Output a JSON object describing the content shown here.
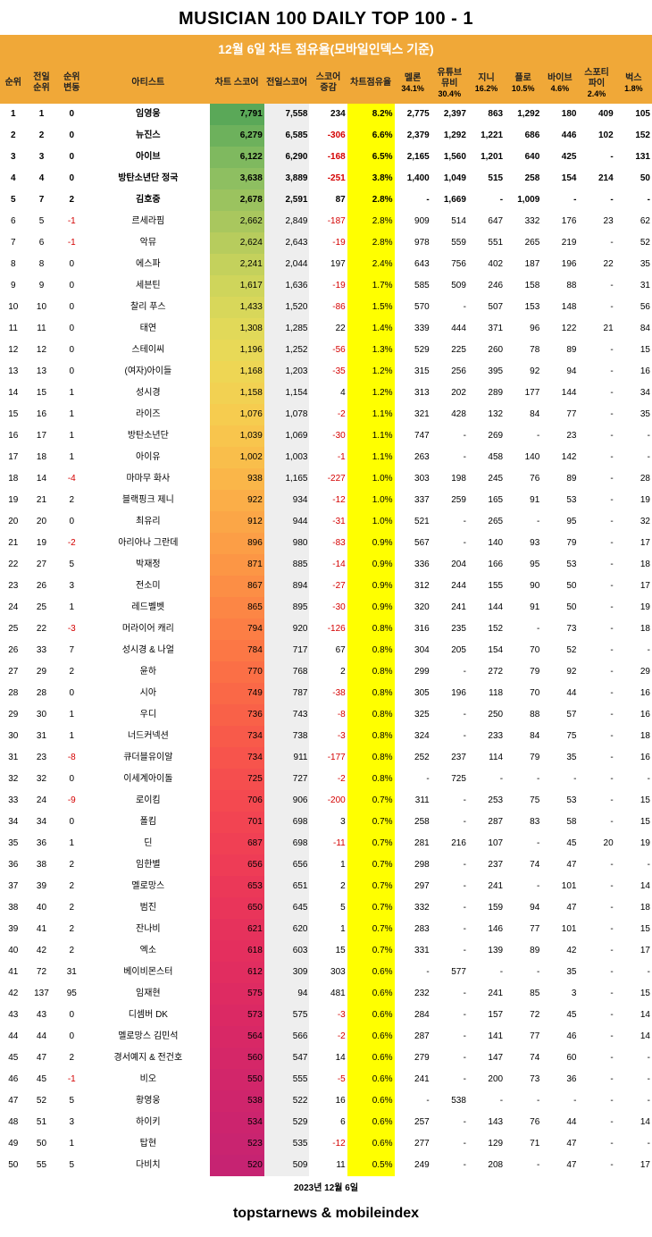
{
  "title": "MUSICIAN 100 DAILY TOP 100 - 1",
  "subtitle": "12월 6일  차트 점유율(모바일인덱스 기준)",
  "date": "2023년 12월 6일",
  "footer": "topstarnews & mobileindex",
  "headers": {
    "rank": "순위",
    "prev": "전일\n순위",
    "chg": "순위\n변동",
    "artist": "아티스트",
    "score": "차트 스코어",
    "pscore": "전일스코어",
    "diff": "스코어\n증감",
    "share": "차트점유율",
    "sources": [
      {
        "name": "멜론",
        "pct": "34.1%"
      },
      {
        "name": "유튜브\n뮤비",
        "pct": "30.4%"
      },
      {
        "name": "지니",
        "pct": "16.2%"
      },
      {
        "name": "플로",
        "pct": "10.5%"
      },
      {
        "name": "바이브",
        "pct": "4.6%"
      },
      {
        "name": "스포티\n파이",
        "pct": "2.4%"
      },
      {
        "name": "벅스",
        "pct": "1.8%"
      }
    ]
  },
  "boldRows": 5,
  "scoreGradient": [
    "#5aa858",
    "#6db15c",
    "#7fb95f",
    "#8ebf61",
    "#9bc35f",
    "#a9c75e",
    "#b7cc5d",
    "#c4d15c",
    "#cfd55b",
    "#d8d75a",
    "#e1d959",
    "#e8d957",
    "#eed654",
    "#f2d152",
    "#f6cc4f",
    "#f8c54d",
    "#f9be4b",
    "#fab649",
    "#fbae48",
    "#fba647",
    "#fc9e46",
    "#fc9645",
    "#fc8e45",
    "#fc8645",
    "#fc7e45",
    "#fc7745",
    "#fb6f46",
    "#fa6847",
    "#f96148",
    "#f85a4a",
    "#f7544c",
    "#f54e4e",
    "#f44950",
    "#f24452",
    "#f04054",
    "#ee3c56",
    "#eb3858",
    "#e9355a",
    "#e6325c",
    "#e42f5e",
    "#e12d60",
    "#de2b62",
    "#db2964",
    "#d82866",
    "#d52768",
    "#d2266a",
    "#cf256c",
    "#cc246e",
    "#c92470",
    "#c62372"
  ],
  "rows": [
    {
      "rank": 1,
      "prev": 1,
      "chg": 0,
      "artist": "임영웅",
      "score": "7,791",
      "pscore": "7,558",
      "diff": 234,
      "share": "8.2%",
      "src": [
        "2,775",
        "2,397",
        "863",
        "1,292",
        "180",
        "409",
        "105"
      ]
    },
    {
      "rank": 2,
      "prev": 2,
      "chg": 0,
      "artist": "뉴진스",
      "score": "6,279",
      "pscore": "6,585",
      "diff": -306,
      "share": "6.6%",
      "src": [
        "2,379",
        "1,292",
        "1,221",
        "686",
        "446",
        "102",
        "152"
      ]
    },
    {
      "rank": 3,
      "prev": 3,
      "chg": 0,
      "artist": "아이브",
      "score": "6,122",
      "pscore": "6,290",
      "diff": -168,
      "share": "6.5%",
      "src": [
        "2,165",
        "1,560",
        "1,201",
        "640",
        "425",
        "-",
        "131"
      ]
    },
    {
      "rank": 4,
      "prev": 4,
      "chg": 0,
      "artist": "방탄소년단 정국",
      "score": "3,638",
      "pscore": "3,889",
      "diff": -251,
      "share": "3.8%",
      "src": [
        "1,400",
        "1,049",
        "515",
        "258",
        "154",
        "214",
        "50"
      ]
    },
    {
      "rank": 5,
      "prev": 7,
      "chg": 2,
      "artist": "김호중",
      "score": "2,678",
      "pscore": "2,591",
      "diff": 87,
      "share": "2.8%",
      "src": [
        "-",
        "1,669",
        "-",
        "1,009",
        "-",
        "-",
        "-"
      ]
    },
    {
      "rank": 6,
      "prev": 5,
      "chg": -1,
      "artist": "르세라핌",
      "score": "2,662",
      "pscore": "2,849",
      "diff": -187,
      "share": "2.8%",
      "src": [
        "909",
        "514",
        "647",
        "332",
        "176",
        "23",
        "62"
      ]
    },
    {
      "rank": 7,
      "prev": 6,
      "chg": -1,
      "artist": "악뮤",
      "score": "2,624",
      "pscore": "2,643",
      "diff": -19,
      "share": "2.8%",
      "src": [
        "978",
        "559",
        "551",
        "265",
        "219",
        "-",
        "52"
      ]
    },
    {
      "rank": 8,
      "prev": 8,
      "chg": 0,
      "artist": "에스파",
      "score": "2,241",
      "pscore": "2,044",
      "diff": 197,
      "share": "2.4%",
      "src": [
        "643",
        "756",
        "402",
        "187",
        "196",
        "22",
        "35"
      ]
    },
    {
      "rank": 9,
      "prev": 9,
      "chg": 0,
      "artist": "세븐틴",
      "score": "1,617",
      "pscore": "1,636",
      "diff": -19,
      "share": "1.7%",
      "src": [
        "585",
        "509",
        "246",
        "158",
        "88",
        "-",
        "31"
      ]
    },
    {
      "rank": 10,
      "prev": 10,
      "chg": 0,
      "artist": "찰리 푸스",
      "score": "1,433",
      "pscore": "1,520",
      "diff": -86,
      "share": "1.5%",
      "src": [
        "570",
        "-",
        "507",
        "153",
        "148",
        "-",
        "56"
      ]
    },
    {
      "rank": 11,
      "prev": 11,
      "chg": 0,
      "artist": "태연",
      "score": "1,308",
      "pscore": "1,285",
      "diff": 22,
      "share": "1.4%",
      "src": [
        "339",
        "444",
        "371",
        "96",
        "122",
        "21",
        "84"
      ]
    },
    {
      "rank": 12,
      "prev": 12,
      "chg": 0,
      "artist": "스테이씨",
      "score": "1,196",
      "pscore": "1,252",
      "diff": -56,
      "share": "1.3%",
      "src": [
        "529",
        "225",
        "260",
        "78",
        "89",
        "-",
        "15"
      ]
    },
    {
      "rank": 13,
      "prev": 13,
      "chg": 0,
      "artist": "(여자)아이들",
      "score": "1,168",
      "pscore": "1,203",
      "diff": -35,
      "share": "1.2%",
      "src": [
        "315",
        "256",
        "395",
        "92",
        "94",
        "-",
        "16"
      ]
    },
    {
      "rank": 14,
      "prev": 15,
      "chg": 1,
      "artist": "성시경",
      "score": "1,158",
      "pscore": "1,154",
      "diff": 4,
      "share": "1.2%",
      "src": [
        "313",
        "202",
        "289",
        "177",
        "144",
        "-",
        "34"
      ]
    },
    {
      "rank": 15,
      "prev": 16,
      "chg": 1,
      "artist": "라이즈",
      "score": "1,076",
      "pscore": "1,078",
      "diff": -2,
      "share": "1.1%",
      "src": [
        "321",
        "428",
        "132",
        "84",
        "77",
        "-",
        "35"
      ]
    },
    {
      "rank": 16,
      "prev": 17,
      "chg": 1,
      "artist": "방탄소년단",
      "score": "1,039",
      "pscore": "1,069",
      "diff": -30,
      "share": "1.1%",
      "src": [
        "747",
        "-",
        "269",
        "-",
        "23",
        "-",
        "-"
      ]
    },
    {
      "rank": 17,
      "prev": 18,
      "chg": 1,
      "artist": "아이유",
      "score": "1,002",
      "pscore": "1,003",
      "diff": -1,
      "share": "1.1%",
      "src": [
        "263",
        "-",
        "458",
        "140",
        "142",
        "-",
        "-"
      ]
    },
    {
      "rank": 18,
      "prev": 14,
      "chg": -4,
      "artist": "마마무 화사",
      "score": "938",
      "pscore": "1,165",
      "diff": -227,
      "share": "1.0%",
      "src": [
        "303",
        "198",
        "245",
        "76",
        "89",
        "-",
        "28"
      ]
    },
    {
      "rank": 19,
      "prev": 21,
      "chg": 2,
      "artist": "블랙핑크 제니",
      "score": "922",
      "pscore": "934",
      "diff": -12,
      "share": "1.0%",
      "src": [
        "337",
        "259",
        "165",
        "91",
        "53",
        "-",
        "19"
      ]
    },
    {
      "rank": 20,
      "prev": 20,
      "chg": 0,
      "artist": "최유리",
      "score": "912",
      "pscore": "944",
      "diff": -31,
      "share": "1.0%",
      "src": [
        "521",
        "-",
        "265",
        "-",
        "95",
        "-",
        "32"
      ]
    },
    {
      "rank": 21,
      "prev": 19,
      "chg": -2,
      "artist": "아리아나 그란데",
      "score": "896",
      "pscore": "980",
      "diff": -83,
      "share": "0.9%",
      "src": [
        "567",
        "-",
        "140",
        "93",
        "79",
        "-",
        "17"
      ]
    },
    {
      "rank": 22,
      "prev": 27,
      "chg": 5,
      "artist": "박재정",
      "score": "871",
      "pscore": "885",
      "diff": -14,
      "share": "0.9%",
      "src": [
        "336",
        "204",
        "166",
        "95",
        "53",
        "-",
        "18"
      ]
    },
    {
      "rank": 23,
      "prev": 26,
      "chg": 3,
      "artist": "전소미",
      "score": "867",
      "pscore": "894",
      "diff": -27,
      "share": "0.9%",
      "src": [
        "312",
        "244",
        "155",
        "90",
        "50",
        "-",
        "17"
      ]
    },
    {
      "rank": 24,
      "prev": 25,
      "chg": 1,
      "artist": "레드벨벳",
      "score": "865",
      "pscore": "895",
      "diff": -30,
      "share": "0.9%",
      "src": [
        "320",
        "241",
        "144",
        "91",
        "50",
        "-",
        "19"
      ]
    },
    {
      "rank": 25,
      "prev": 22,
      "chg": -3,
      "artist": "머라이어 캐리",
      "score": "794",
      "pscore": "920",
      "diff": -126,
      "share": "0.8%",
      "src": [
        "316",
        "235",
        "152",
        "-",
        "73",
        "-",
        "18"
      ]
    },
    {
      "rank": 26,
      "prev": 33,
      "chg": 7,
      "artist": "성시경 & 나얼",
      "score": "784",
      "pscore": "717",
      "diff": 67,
      "share": "0.8%",
      "src": [
        "304",
        "205",
        "154",
        "70",
        "52",
        "-",
        "-"
      ]
    },
    {
      "rank": 27,
      "prev": 29,
      "chg": 2,
      "artist": "윤하",
      "score": "770",
      "pscore": "768",
      "diff": 2,
      "share": "0.8%",
      "src": [
        "299",
        "-",
        "272",
        "79",
        "92",
        "-",
        "29"
      ]
    },
    {
      "rank": 28,
      "prev": 28,
      "chg": 0,
      "artist": "시아",
      "score": "749",
      "pscore": "787",
      "diff": -38,
      "share": "0.8%",
      "src": [
        "305",
        "196",
        "118",
        "70",
        "44",
        "-",
        "16"
      ]
    },
    {
      "rank": 29,
      "prev": 30,
      "chg": 1,
      "artist": "우디",
      "score": "736",
      "pscore": "743",
      "diff": -8,
      "share": "0.8%",
      "src": [
        "325",
        "-",
        "250",
        "88",
        "57",
        "-",
        "16"
      ]
    },
    {
      "rank": 30,
      "prev": 31,
      "chg": 1,
      "artist": "너드커넥션",
      "score": "734",
      "pscore": "738",
      "diff": -3,
      "share": "0.8%",
      "src": [
        "324",
        "-",
        "233",
        "84",
        "75",
        "-",
        "18"
      ]
    },
    {
      "rank": 31,
      "prev": 23,
      "chg": -8,
      "artist": "큐더블유이알",
      "score": "734",
      "pscore": "911",
      "diff": -177,
      "share": "0.8%",
      "src": [
        "252",
        "237",
        "114",
        "79",
        "35",
        "-",
        "16"
      ]
    },
    {
      "rank": 32,
      "prev": 32,
      "chg": 0,
      "artist": "이세계아이돌",
      "score": "725",
      "pscore": "727",
      "diff": -2,
      "share": "0.8%",
      "src": [
        "-",
        "725",
        "-",
        "-",
        "-",
        "-",
        "-"
      ]
    },
    {
      "rank": 33,
      "prev": 24,
      "chg": -9,
      "artist": "로이킴",
      "score": "706",
      "pscore": "906",
      "diff": -200,
      "share": "0.7%",
      "src": [
        "311",
        "-",
        "253",
        "75",
        "53",
        "-",
        "15"
      ]
    },
    {
      "rank": 34,
      "prev": 34,
      "chg": 0,
      "artist": "폴킴",
      "score": "701",
      "pscore": "698",
      "diff": 3,
      "share": "0.7%",
      "src": [
        "258",
        "-",
        "287",
        "83",
        "58",
        "-",
        "15"
      ]
    },
    {
      "rank": 35,
      "prev": 36,
      "chg": 1,
      "artist": "딘",
      "score": "687",
      "pscore": "698",
      "diff": -11,
      "share": "0.7%",
      "src": [
        "281",
        "216",
        "107",
        "-",
        "45",
        "20",
        "19"
      ]
    },
    {
      "rank": 36,
      "prev": 38,
      "chg": 2,
      "artist": "임한별",
      "score": "656",
      "pscore": "656",
      "diff": 1,
      "share": "0.7%",
      "src": [
        "298",
        "-",
        "237",
        "74",
        "47",
        "-",
        "-"
      ]
    },
    {
      "rank": 37,
      "prev": 39,
      "chg": 2,
      "artist": "멜로망스",
      "score": "653",
      "pscore": "651",
      "diff": 2,
      "share": "0.7%",
      "src": [
        "297",
        "-",
        "241",
        "-",
        "101",
        "-",
        "14"
      ]
    },
    {
      "rank": 38,
      "prev": 40,
      "chg": 2,
      "artist": "범진",
      "score": "650",
      "pscore": "645",
      "diff": 5,
      "share": "0.7%",
      "src": [
        "332",
        "-",
        "159",
        "94",
        "47",
        "-",
        "18"
      ]
    },
    {
      "rank": 39,
      "prev": 41,
      "chg": 2,
      "artist": "잔나비",
      "score": "621",
      "pscore": "620",
      "diff": 1,
      "share": "0.7%",
      "src": [
        "283",
        "-",
        "146",
        "77",
        "101",
        "-",
        "15"
      ]
    },
    {
      "rank": 40,
      "prev": 42,
      "chg": 2,
      "artist": "엑소",
      "score": "618",
      "pscore": "603",
      "diff": 15,
      "share": "0.7%",
      "src": [
        "331",
        "-",
        "139",
        "89",
        "42",
        "-",
        "17"
      ]
    },
    {
      "rank": 41,
      "prev": 72,
      "chg": 31,
      "artist": "베이비몬스터",
      "score": "612",
      "pscore": "309",
      "diff": 303,
      "share": "0.6%",
      "src": [
        "-",
        "577",
        "-",
        "-",
        "35",
        "-",
        "-"
      ]
    },
    {
      "rank": 42,
      "prev": 137,
      "chg": 95,
      "artist": "임재현",
      "score": "575",
      "pscore": "94",
      "diff": 481,
      "share": "0.6%",
      "src": [
        "232",
        "-",
        "241",
        "85",
        "3",
        "-",
        "15"
      ]
    },
    {
      "rank": 43,
      "prev": 43,
      "chg": 0,
      "artist": "디셈버 DK",
      "score": "573",
      "pscore": "575",
      "diff": -3,
      "share": "0.6%",
      "src": [
        "284",
        "-",
        "157",
        "72",
        "45",
        "-",
        "14"
      ]
    },
    {
      "rank": 44,
      "prev": 44,
      "chg": 0,
      "artist": "멜로망스 김민석",
      "score": "564",
      "pscore": "566",
      "diff": -2,
      "share": "0.6%",
      "src": [
        "287",
        "-",
        "141",
        "77",
        "46",
        "-",
        "14"
      ]
    },
    {
      "rank": 45,
      "prev": 47,
      "chg": 2,
      "artist": "경서예지 & 전건호",
      "score": "560",
      "pscore": "547",
      "diff": 14,
      "share": "0.6%",
      "src": [
        "279",
        "-",
        "147",
        "74",
        "60",
        "-",
        "-"
      ]
    },
    {
      "rank": 46,
      "prev": 45,
      "chg": -1,
      "artist": "비오",
      "score": "550",
      "pscore": "555",
      "diff": -5,
      "share": "0.6%",
      "src": [
        "241",
        "-",
        "200",
        "73",
        "36",
        "-",
        "-"
      ]
    },
    {
      "rank": 47,
      "prev": 52,
      "chg": 5,
      "artist": "황영웅",
      "score": "538",
      "pscore": "522",
      "diff": 16,
      "share": "0.6%",
      "src": [
        "-",
        "538",
        "-",
        "-",
        "-",
        "-",
        "-"
      ]
    },
    {
      "rank": 48,
      "prev": 51,
      "chg": 3,
      "artist": "하이키",
      "score": "534",
      "pscore": "529",
      "diff": 6,
      "share": "0.6%",
      "src": [
        "257",
        "-",
        "143",
        "76",
        "44",
        "-",
        "14"
      ]
    },
    {
      "rank": 49,
      "prev": 50,
      "chg": 1,
      "artist": "탑현",
      "score": "523",
      "pscore": "535",
      "diff": -12,
      "share": "0.6%",
      "src": [
        "277",
        "-",
        "129",
        "71",
        "47",
        "-",
        "-"
      ]
    },
    {
      "rank": 50,
      "prev": 55,
      "chg": 5,
      "artist": "다비치",
      "score": "520",
      "pscore": "509",
      "diff": 11,
      "share": "0.5%",
      "src": [
        "249",
        "-",
        "208",
        "-",
        "47",
        "-",
        "17"
      ]
    }
  ]
}
